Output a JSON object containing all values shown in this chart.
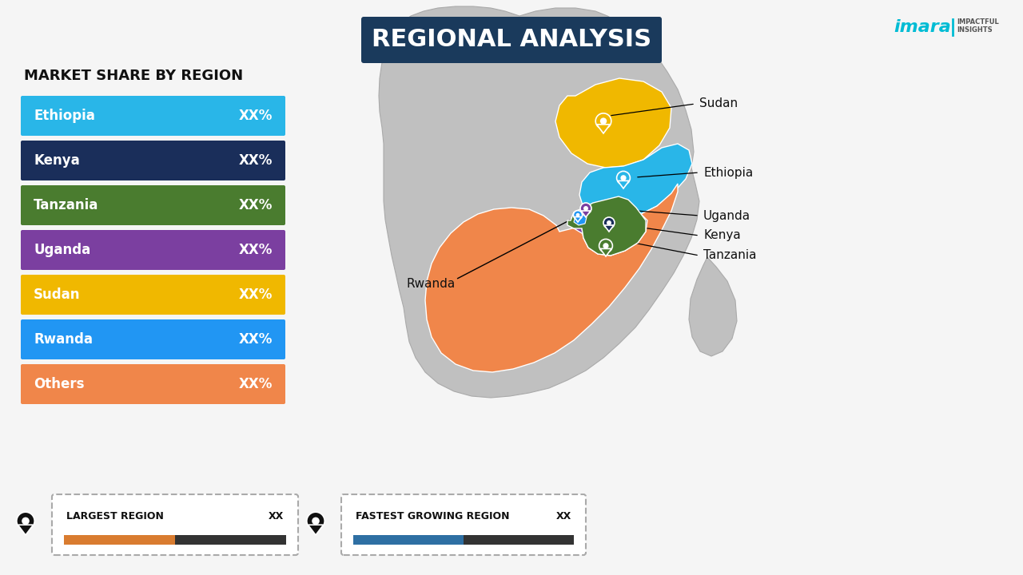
{
  "title": "REGIONAL ANALYSIS",
  "title_bg": "#1a3a5c",
  "title_color": "#ffffff",
  "subtitle": "MARKET SHARE BY REGION",
  "background_color": "#f5f5f5",
  "bars": [
    {
      "label": "Ethiopia",
      "value": "XX%",
      "color": "#29b6e8"
    },
    {
      "label": "Kenya",
      "value": "XX%",
      "color": "#1a2e5a"
    },
    {
      "label": "Tanzania",
      "value": "XX%",
      "color": "#4a7c2f"
    },
    {
      "label": "Uganda",
      "value": "XX%",
      "color": "#7b3fa0"
    },
    {
      "label": "Sudan",
      "value": "XX%",
      "color": "#f0b800"
    },
    {
      "label": "Rwanda",
      "value": "XX%",
      "color": "#2196f3"
    },
    {
      "label": "Others",
      "value": "XX%",
      "color": "#f0864a"
    }
  ],
  "bottom_boxes": [
    {
      "label": "LARGEST REGION",
      "value": "XX",
      "bar_color": "#d97c30",
      "bar_color2": "#333333"
    },
    {
      "label": "FASTEST GROWING REGION",
      "value": "XX",
      "bar_color": "#2e6fa3",
      "bar_color2": "#333333"
    }
  ],
  "africa_color": "#c0c0c0",
  "africa_edge": "#aaaaaa",
  "imarc_main": "#00bcd4",
  "imarc_sub": "#555555"
}
